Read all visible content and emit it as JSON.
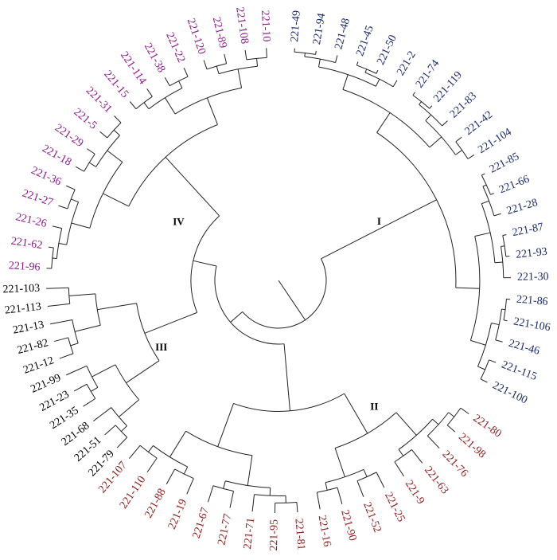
{
  "clusters": [
    {
      "label": "I",
      "color": "#1a2a6c",
      "leaves": [
        "221-49",
        "221-94",
        "221-48",
        "221-45",
        "221-50",
        "221-2",
        "221-74",
        "221-119",
        "221-83",
        "221-42",
        "221-104",
        "221-85",
        "221-66",
        "221-28",
        "221-87",
        "221-93",
        "221-30",
        "221-86",
        "221-106",
        "221-46",
        "221-115",
        "221-100"
      ]
    },
    {
      "label": "II",
      "color": "#8b1a1a",
      "leaves": [
        "221-80",
        "221-98",
        "221-76",
        "221-63",
        "221-9",
        "221-25",
        "221-52",
        "221-90",
        "221-16",
        "221-81",
        "221-95",
        "221-71",
        "221-77",
        "221-67",
        "221-19",
        "221-88",
        "221-110",
        "221-107"
      ]
    },
    {
      "label": "III",
      "color": "#000000",
      "leaves": [
        "221-79",
        "221-51",
        "221-68",
        "221-35",
        "221-23",
        "221-99",
        "221-12",
        "221-82",
        "221-13",
        "221-113",
        "221-103"
      ]
    },
    {
      "label": "IV",
      "color": "#8b1a8b",
      "leaves": [
        "221-96",
        "221-62",
        "221-26",
        "221-27",
        "221-36",
        "221-18",
        "221-29",
        "221-5",
        "221-31",
        "221-15",
        "221-114",
        "221-38",
        "221-22",
        "221-120",
        "221-89",
        "221-108",
        "221-10"
      ]
    }
  ]
}
